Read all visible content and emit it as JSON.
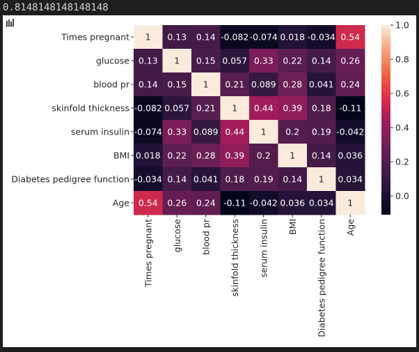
{
  "output": {
    "text": "0.8148148148148148"
  },
  "icons": {
    "plot_toolbar": "bar-chart-icon"
  },
  "chart_data": {
    "type": "heatmap",
    "title": "",
    "xlabel": "",
    "ylabel": "",
    "labels": [
      "Times pregnant",
      "glucose",
      "blood pr",
      "skinfold thickness",
      "serum insulin",
      "BMI",
      "Diabetes pedigree function",
      "Age"
    ],
    "values": [
      [
        1,
        0.13,
        0.14,
        -0.082,
        -0.074,
        0.018,
        -0.034,
        0.54
      ],
      [
        0.13,
        1,
        0.15,
        0.057,
        0.33,
        0.22,
        0.14,
        0.26
      ],
      [
        0.14,
        0.15,
        1,
        0.21,
        0.089,
        0.28,
        0.041,
        0.24
      ],
      [
        -0.082,
        0.057,
        0.21,
        1,
        0.44,
        0.39,
        0.18,
        -0.11
      ],
      [
        -0.074,
        0.33,
        0.089,
        0.44,
        1,
        0.2,
        0.19,
        -0.042
      ],
      [
        0.018,
        0.22,
        0.28,
        0.39,
        0.2,
        1,
        0.14,
        0.036
      ],
      [
        -0.034,
        0.14,
        0.041,
        0.18,
        0.19,
        0.14,
        1,
        0.034
      ],
      [
        0.54,
        0.26,
        0.24,
        -0.11,
        -0.042,
        0.036,
        0.034,
        1
      ]
    ],
    "value_labels": [
      [
        "1",
        "0.13",
        "0.14",
        "-0.082",
        "-0.074",
        "0.018",
        "-0.034",
        "0.54"
      ],
      [
        "0.13",
        "1",
        "0.15",
        "0.057",
        "0.33",
        "0.22",
        "0.14",
        "0.26"
      ],
      [
        "0.14",
        "0.15",
        "1",
        "0.21",
        "0.089",
        "0.28",
        "0.041",
        "0.24"
      ],
      [
        "-0.082",
        "0.057",
        "0.21",
        "1",
        "0.44",
        "0.39",
        "0.18",
        "-0.11"
      ],
      [
        "-0.074",
        "0.33",
        "0.089",
        "0.44",
        "1",
        "0.2",
        "0.19",
        "-0.042"
      ],
      [
        "0.018",
        "0.22",
        "0.28",
        "0.39",
        "0.2",
        "1",
        "0.14",
        "0.036"
      ],
      [
        "-0.034",
        "0.14",
        "0.041",
        "0.18",
        "0.19",
        "0.14",
        "1",
        "0.034"
      ],
      [
        "0.54",
        "0.26",
        "0.24",
        "-0.11",
        "-0.042",
        "0.036",
        "0.034",
        "1"
      ]
    ],
    "colormap": "rocket",
    "color_range": [
      -0.11,
      1.0
    ],
    "colorbar_ticks": [
      1.0,
      0.8,
      0.6,
      0.4,
      0.2,
      0.0
    ],
    "colorbar_tick_labels": [
      "1.0",
      "0.8",
      "0.6",
      "0.4",
      "0.2",
      "0.0"
    ],
    "grid": false,
    "legend": "colorbar-right"
  }
}
